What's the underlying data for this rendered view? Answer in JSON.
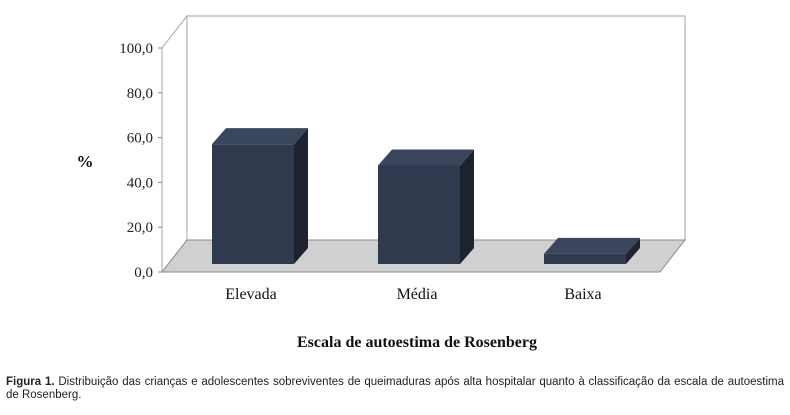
{
  "chart_data": {
    "type": "bar",
    "categories": [
      "Elevada",
      "Média",
      "Baixa"
    ],
    "values": [
      53.5,
      44.0,
      4.5
    ],
    "xlabel": "Escala de autoestima de Rosenberg",
    "ylabel": "%",
    "ylim": [
      0,
      100
    ],
    "yticks": [
      "0,0",
      "20,0",
      "40,0",
      "60,0",
      "80,0",
      "100,0"
    ],
    "grid": false,
    "colors": {
      "bar_front": "#2f3a4f",
      "bar_side": "#1d2330",
      "bar_top": "#3a465c",
      "floor": "#d0d0d0"
    }
  },
  "caption": {
    "label": "Figura 1.",
    "text": " Distribuição das crianças e adolescentes sobreviventes de queimaduras após alta hospitalar quanto à classificação da escala de autoestima de Rosenberg."
  }
}
